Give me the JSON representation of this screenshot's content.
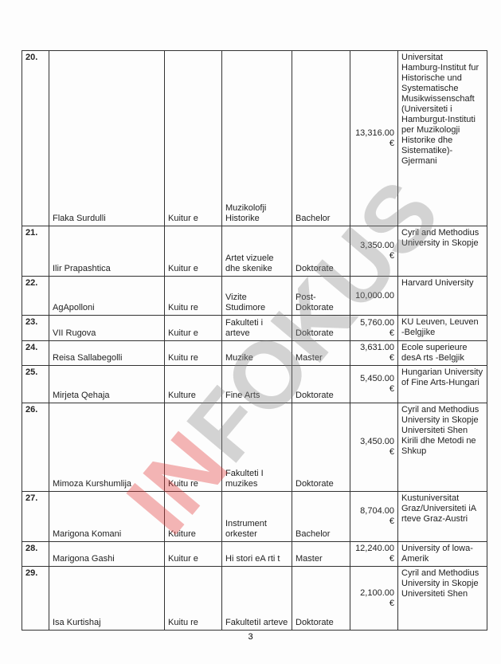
{
  "table": {
    "rows": [
      [
        "20.",
        "Flaka Surdulli",
        "Kuitur e",
        "Muzikolofji Historike",
        "Bachelor",
        "13,316.00 €",
        "Universitat Hamburg-Institut fur Historische und Systematische Musikwissenschaft (Universiteti i Hamburgut-Instituti per Muzikologji Historike dhe Sistematike)-Gjermani"
      ],
      [
        "21.",
        "Ilir Prapashtica",
        "Kuitur e",
        "Artet vizuele dhe skenike",
        "Doktorate",
        "3,350.00 €",
        "Cyril and Methodius University in Skopje"
      ],
      [
        "22.",
        "AgApolloni",
        "Kuitu re",
        "Vizite Studimore",
        "Post-Doktorate",
        "10,000.00",
        "Harvard University"
      ],
      [
        "23.",
        "VII Rugova",
        "Kuitur e",
        "Fakulteti i arteve",
        "Doktorate",
        "5,760.00 €",
        "KU Leuven, Leuven -Belgjike"
      ],
      [
        "24.",
        "Reisa Sallabegolli",
        "Kuitu re",
        "Muzike",
        "Master",
        "3,631.00 €",
        "Ecole superieure desA rts -Belgjik"
      ],
      [
        "25.",
        "Mirjeta Qehaja",
        "Kulture",
        "Fine Arts",
        "Doktorate",
        "5,450.00 €",
        "Hungarian University of Fine Arts-Hungari"
      ],
      [
        "26.",
        "Mimoza Kurshumlija",
        "Kuitu re",
        "Fakulteti I muzikes",
        "Doktorate",
        "3,450.00 €",
        "Cyril and Methodius University in Skopje Universiteti Shen Kirili dhe Metodi ne Shkup"
      ],
      [
        "27.",
        "Marigona Komani",
        "Kuiture",
        "Instrument orkester",
        "Bachelor",
        "8,704.00 €",
        "Kustuniversitat Graz/Universiteti iA rteve Graz-Austri"
      ],
      [
        "28.",
        "Marigona Gashi",
        "Kuitur e",
        "Hi stori eA rti t",
        "Master",
        "12,240.00 €",
        "University of lowa-Amerik"
      ],
      [
        "29.",
        "Isa Kurtishaj",
        "Kuitu re",
        "FakultetiI arteve",
        "Doktorate",
        "2,100.00 €",
        "Cyril and Methodius University in Skopje Universiteti Shen"
      ]
    ]
  },
  "page_number": "3",
  "watermark": [
    "IN",
    "FOKUS"
  ]
}
